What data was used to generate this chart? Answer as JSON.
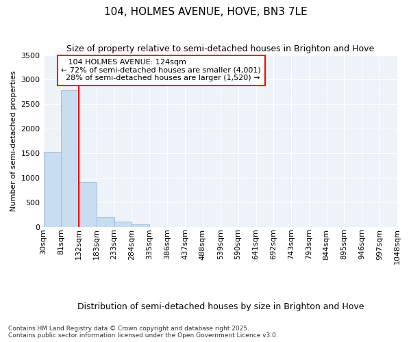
{
  "title1": "104, HOLMES AVENUE, HOVE, BN3 7LE",
  "title2": "Size of property relative to semi-detached houses in Brighton and Hove",
  "xlabel": "Distribution of semi-detached houses by size in Brighton and Hove",
  "ylabel": "Number of semi-detached properties",
  "property_label": "104 HOLMES AVENUE: 124sqm",
  "pct_smaller": 72,
  "n_smaller": 4001,
  "pct_larger": 28,
  "n_larger": 1520,
  "bin_labels": [
    "30sqm",
    "81sqm",
    "132sqm",
    "183sqm",
    "233sqm",
    "284sqm",
    "335sqm",
    "386sqm",
    "437sqm",
    "488sqm",
    "539sqm",
    "590sqm",
    "641sqm",
    "692sqm",
    "743sqm",
    "793sqm",
    "844sqm",
    "895sqm",
    "946sqm",
    "997sqm",
    "1048sqm"
  ],
  "bin_edges": [
    30,
    81,
    132,
    183,
    233,
    284,
    335,
    386,
    437,
    488,
    539,
    590,
    641,
    692,
    743,
    793,
    844,
    895,
    946,
    997,
    1048
  ],
  "bar_values": [
    1530,
    2780,
    910,
    210,
    100,
    50,
    0,
    0,
    0,
    0,
    0,
    0,
    0,
    0,
    0,
    0,
    0,
    0,
    0,
    0
  ],
  "bar_color": "#c9ddf0",
  "bar_edge_color": "#a0bcd8",
  "red_line_x": 132,
  "ylim": [
    0,
    3500
  ],
  "yticks": [
    0,
    500,
    1000,
    1500,
    2000,
    2500,
    3000,
    3500
  ],
  "footer": "Contains HM Land Registry data © Crown copyright and database right 2025.\nContains public sector information licensed under the Open Government Licence v3.0.",
  "bg_color": "#ffffff",
  "plot_bg_color": "#eef3fa",
  "grid_color": "#ffffff",
  "title_fontsize": 11,
  "subtitle_fontsize": 9,
  "ylabel_fontsize": 8,
  "xlabel_fontsize": 9,
  "tick_fontsize": 8,
  "annot_fontsize": 8
}
